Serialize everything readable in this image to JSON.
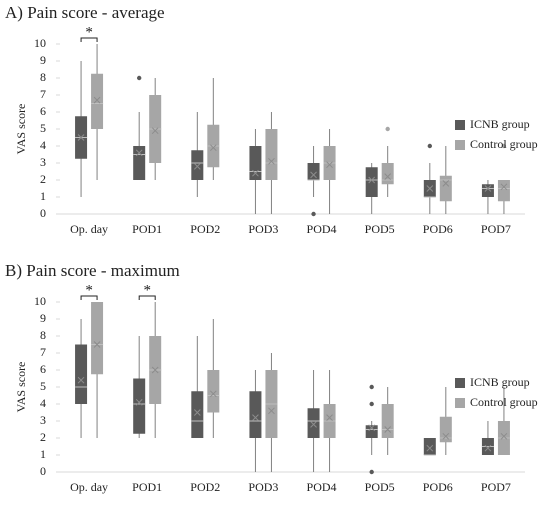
{
  "chart_data": [
    {
      "type": "box",
      "title": "A) Pain score - average",
      "y_label": "VAS score",
      "categories": [
        "Op. day",
        "POD1",
        "POD2",
        "POD3",
        "POD4",
        "POD5",
        "POD6",
        "POD7"
      ],
      "ylim": [
        0,
        10
      ],
      "yticks": [
        0,
        1,
        2,
        3,
        4,
        5,
        6,
        7,
        8,
        9,
        10
      ],
      "legend": "right",
      "series": [
        {
          "name": "ICNB group",
          "color": "#595959",
          "values": [
            {
              "min": 1,
              "q1": 3.25,
              "median": 4.5,
              "q3": 5.75,
              "max": 9,
              "mean": 4.5,
              "outliers": []
            },
            {
              "min": 2,
              "q1": 2,
              "median": 3.5,
              "q3": 4,
              "max": 6,
              "mean": 3.6,
              "outliers": [
                8
              ]
            },
            {
              "min": 1,
              "q1": 2,
              "median": 3,
              "q3": 3.75,
              "max": 6,
              "mean": 2.8,
              "outliers": []
            },
            {
              "min": 0,
              "q1": 2,
              "median": 2.5,
              "q3": 4,
              "max": 5,
              "mean": 2.4,
              "outliers": []
            },
            {
              "min": 1,
              "q1": 2,
              "median": 2,
              "q3": 3,
              "max": 4,
              "mean": 2.3,
              "outliers": [
                0
              ]
            },
            {
              "min": 0,
              "q1": 1,
              "median": 2,
              "q3": 2.75,
              "max": 3,
              "mean": 2,
              "outliers": []
            },
            {
              "min": 0,
              "q1": 1,
              "median": 1,
              "q3": 2,
              "max": 3,
              "mean": 1.5,
              "outliers": [
                4
              ]
            },
            {
              "min": 0,
              "q1": 1,
              "median": 1.5,
              "q3": 1.75,
              "max": 2,
              "mean": 1.5,
              "outliers": []
            }
          ]
        },
        {
          "name": "Control group",
          "color": "#a6a6a6",
          "values": [
            {
              "min": 2,
              "q1": 5,
              "median": 6.5,
              "q3": 8.25,
              "max": 10,
              "mean": 6.7,
              "outliers": []
            },
            {
              "min": 2,
              "q1": 3,
              "median": 5,
              "q3": 7,
              "max": 8,
              "mean": 4.9,
              "outliers": []
            },
            {
              "min": 2,
              "q1": 2.75,
              "median": 4,
              "q3": 5.25,
              "max": 8,
              "mean": 3.9,
              "outliers": []
            },
            {
              "min": 0,
              "q1": 2,
              "median": 3,
              "q3": 5,
              "max": 6,
              "mean": 3.1,
              "outliers": []
            },
            {
              "min": 0,
              "q1": 2,
              "median": 3,
              "q3": 4,
              "max": 5,
              "mean": 2.9,
              "outliers": []
            },
            {
              "min": 1,
              "q1": 1.75,
              "median": 2,
              "q3": 3,
              "max": 4,
              "mean": 2.2,
              "outliers": [
                5
              ]
            },
            {
              "min": 0,
              "q1": 0.75,
              "median": 2,
              "q3": 2.25,
              "max": 4,
              "mean": 1.8,
              "outliers": []
            },
            {
              "min": 0,
              "q1": 0.75,
              "median": 1.5,
              "q3": 2,
              "max": 2,
              "mean": 1.6,
              "outliers": [
                4
              ]
            }
          ]
        }
      ],
      "annotations": [
        {
          "text": "*",
          "category": "Op. day"
        }
      ]
    },
    {
      "type": "box",
      "title": "B) Pain score - maximum",
      "y_label": "VAS score",
      "categories": [
        "Op. day",
        "POD1",
        "POD2",
        "POD3",
        "POD4",
        "POD5",
        "POD6",
        "POD7"
      ],
      "ylim": [
        0,
        10
      ],
      "yticks": [
        0,
        1,
        2,
        3,
        4,
        5,
        6,
        7,
        8,
        9,
        10
      ],
      "legend": "right",
      "series": [
        {
          "name": "ICNB group",
          "color": "#595959",
          "values": [
            {
              "min": 2,
              "q1": 4,
              "median": 5,
              "q3": 7.5,
              "max": 9,
              "mean": 5.4,
              "outliers": []
            },
            {
              "min": 2,
              "q1": 2.25,
              "median": 4,
              "q3": 5.5,
              "max": 8,
              "mean": 4.1,
              "outliers": []
            },
            {
              "min": 2,
              "q1": 2,
              "median": 3,
              "q3": 4.75,
              "max": 8,
              "mean": 3.5,
              "outliers": []
            },
            {
              "min": 0,
              "q1": 2,
              "median": 3,
              "q3": 4.75,
              "max": 6,
              "mean": 3.2,
              "outliers": []
            },
            {
              "min": 0,
              "q1": 2,
              "median": 3,
              "q3": 3.75,
              "max": 6,
              "mean": 2.8,
              "outliers": []
            },
            {
              "min": 1,
              "q1": 2,
              "median": 2.5,
              "q3": 2.75,
              "max": 3,
              "mean": 2.6,
              "outliers": [
                4,
                5,
                0
              ]
            },
            {
              "min": 1,
              "q1": 1,
              "median": 1,
              "q3": 2,
              "max": 2,
              "mean": 1.4,
              "outliers": []
            },
            {
              "min": 1,
              "q1": 1,
              "median": 1.5,
              "q3": 2,
              "max": 3,
              "mean": 1.4,
              "outliers": []
            }
          ]
        },
        {
          "name": "Control group",
          "color": "#a6a6a6",
          "values": [
            {
              "min": 2,
              "q1": 5.75,
              "median": 7.5,
              "q3": 10,
              "max": 10,
              "mean": 7.5,
              "outliers": []
            },
            {
              "min": 2,
              "q1": 4,
              "median": 6,
              "q3": 8,
              "max": 10,
              "mean": 6,
              "outliers": []
            },
            {
              "min": 2,
              "q1": 3.5,
              "median": 4.5,
              "q3": 6,
              "max": 9,
              "mean": 4.6,
              "outliers": []
            },
            {
              "min": 0,
              "q1": 2,
              "median": 4,
              "q3": 6,
              "max": 7,
              "mean": 3.6,
              "outliers": []
            },
            {
              "min": 0,
              "q1": 2,
              "median": 3,
              "q3": 4,
              "max": 6,
              "mean": 3.2,
              "outliers": []
            },
            {
              "min": 1,
              "q1": 2,
              "median": 2.5,
              "q3": 4,
              "max": 5,
              "mean": 2.5,
              "outliers": []
            },
            {
              "min": 1,
              "q1": 1.75,
              "median": 2,
              "q3": 3.25,
              "max": 5,
              "mean": 2.1,
              "outliers": []
            },
            {
              "min": 1,
              "q1": 1,
              "median": 2,
              "q3": 3,
              "max": 5,
              "mean": 2.1,
              "outliers": []
            }
          ]
        }
      ],
      "annotations": [
        {
          "text": "*",
          "category": "Op. day"
        },
        {
          "text": "*",
          "category": "POD1"
        }
      ]
    }
  ]
}
